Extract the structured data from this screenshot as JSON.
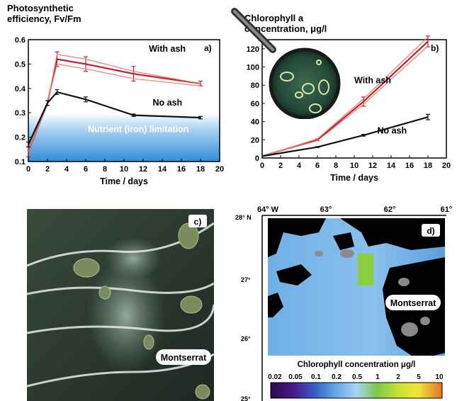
{
  "chart_data": [
    {
      "panel": "a)",
      "type": "line",
      "ylabel_line1": "Photosynthetic",
      "ylabel_line2": "efficiency, Fv/Fm",
      "xlabel": "Time / days",
      "xlim": [
        0,
        20
      ],
      "ylim": [
        0.1,
        0.6
      ],
      "xticks": [
        "0",
        "2",
        "4",
        "6",
        "8",
        "10",
        "12",
        "14",
        "16",
        "18",
        "20"
      ],
      "yticks": [
        "0.1",
        "0.2",
        "0.3",
        "0.4",
        "0.5",
        "0.6"
      ],
      "band_label": "Nutrient (iron) limitation",
      "band_range": [
        0.1,
        0.3
      ],
      "series": [
        {
          "name": "With ash",
          "color": "#c41e2a",
          "x": [
            0,
            2,
            3,
            6,
            11,
            18
          ],
          "y": [
            0.14,
            0.34,
            0.52,
            0.5,
            0.46,
            0.42
          ],
          "err": [
            0.02,
            0.01,
            0.03,
            0.03,
            0.03,
            0.01
          ]
        },
        {
          "name": "",
          "color": "#e07f74",
          "x": [
            0,
            2,
            3,
            6,
            11,
            18
          ],
          "y": [
            0.14,
            0.34,
            0.54,
            0.52,
            0.47,
            0.42
          ],
          "err": [
            0,
            0,
            0,
            0,
            0,
            0
          ]
        },
        {
          "name": "",
          "color": "#e07f74",
          "x": [
            0,
            2,
            3,
            6,
            11,
            18
          ],
          "y": [
            0.14,
            0.34,
            0.5,
            0.48,
            0.44,
            0.41
          ],
          "err": [
            0,
            0,
            0,
            0,
            0,
            0
          ]
        },
        {
          "name": "No ash",
          "color": "#111111",
          "x": [
            0,
            2,
            3,
            6,
            11,
            18
          ],
          "y": [
            0.17,
            0.34,
            0.385,
            0.355,
            0.29,
            0.28
          ],
          "err": [
            0.01,
            0.01,
            0.01,
            0.01,
            0.005,
            0.005
          ]
        }
      ]
    },
    {
      "panel": "b)",
      "type": "line",
      "ylabel_line1": "Chlorophyll a",
      "ylabel_line2": "concentration, μg/l",
      "xlabel": "Time / days",
      "xlim": [
        0,
        20
      ],
      "ylim": [
        0,
        130
      ],
      "xticks": [
        "0",
        "2",
        "4",
        "6",
        "8",
        "10",
        "12",
        "14",
        "16",
        "18",
        "20"
      ],
      "yticks": [
        "0",
        "20",
        "40",
        "60",
        "80",
        "100",
        "120"
      ],
      "series": [
        {
          "name": "With ash",
          "color": "#c41e2a",
          "x": [
            0,
            6,
            11,
            18
          ],
          "y": [
            2,
            20,
            62,
            128
          ],
          "err": [
            0,
            1,
            5,
            6
          ]
        },
        {
          "name": "",
          "color": "#e07f74",
          "x": [
            0,
            6,
            11,
            18
          ],
          "y": [
            2,
            21,
            65,
            133
          ],
          "err": [
            0,
            0,
            0,
            0
          ]
        },
        {
          "name": "",
          "color": "#e07f74",
          "x": [
            0,
            6,
            11,
            18
          ],
          "y": [
            2,
            19,
            59,
            123
          ],
          "err": [
            0,
            0,
            0,
            0
          ]
        },
        {
          "name": "No ash",
          "color": "#111111",
          "x": [
            0,
            6,
            11,
            18
          ],
          "y": [
            2,
            12,
            25,
            45
          ],
          "err": [
            0,
            0.5,
            1,
            3
          ]
        }
      ]
    }
  ],
  "panel_c": {
    "letter": "c)",
    "label": "Montserrat"
  },
  "panel_d": {
    "letter": "d)",
    "label": "Montserrat",
    "lon_labels": [
      "64° W",
      "63°",
      "62°",
      "61°"
    ],
    "lat_labels": [
      "28° N",
      "27°",
      "26°",
      "25°"
    ],
    "colorbar_title": "Chlorophyll concentration μg/l",
    "colorbar_ticks": [
      "0.02",
      "0.05",
      "0.1",
      "0.2",
      "0.5",
      "1",
      "2",
      "5",
      "10"
    ]
  },
  "colors": {
    "with_ash": "#c41e2a",
    "with_ash_light": "#e07f74",
    "no_ash": "#111111",
    "band": "#2f8fd8"
  }
}
